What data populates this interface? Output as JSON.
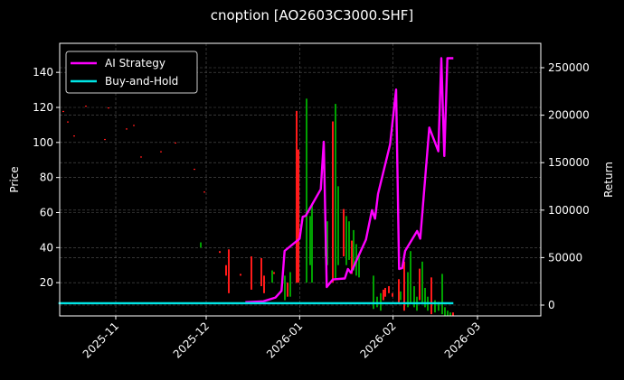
{
  "title": "cnoption [AO2603C3000.SHF]",
  "chart_data": {
    "type": "line",
    "title": "cnoption [AO2603C3000.SHF]",
    "xlabel": "",
    "ylabel_left": "Price",
    "ylabel_right": "Return",
    "x_ticks": [
      "2025-11",
      "2025-12",
      "2026-01",
      "2026-02",
      "2026-03"
    ],
    "y_left_ticks": [
      20,
      40,
      60,
      80,
      100,
      120,
      140
    ],
    "y_right_ticks": [
      0,
      50000,
      100000,
      150000,
      200000,
      250000
    ],
    "y_left_range": [
      1,
      155
    ],
    "y_right_range": [
      -11000,
      275000
    ],
    "x_range": [
      "2025-10-13",
      "2026-03-24"
    ],
    "grid": true,
    "legend_position": "upper left",
    "legend": [
      {
        "label": "AI Strategy",
        "color": "#ff00ff"
      },
      {
        "label": "Buy-and-Hold",
        "color": "#00e5e5"
      }
    ],
    "series": [
      {
        "name": "AI Strategy",
        "axis": "right",
        "color": "#ff00ff",
        "points": [
          [
            "2025-12-14",
            3000
          ],
          [
            "2025-12-20",
            4000
          ],
          [
            "2025-12-24",
            8000
          ],
          [
            "2025-12-26",
            15000
          ],
          [
            "2025-12-27",
            57000
          ],
          [
            "2026-01-01",
            70000
          ],
          [
            "2026-01-02",
            93000
          ],
          [
            "2026-01-03",
            94000
          ],
          [
            "2026-01-08",
            122000
          ],
          [
            "2026-01-09",
            172000
          ],
          [
            "2026-01-10",
            19000
          ],
          [
            "2026-01-12",
            27000
          ],
          [
            "2026-01-16",
            28000
          ],
          [
            "2026-01-17",
            38000
          ],
          [
            "2026-01-18",
            34000
          ],
          [
            "2026-01-23",
            69000
          ],
          [
            "2026-01-25",
            100000
          ],
          [
            "2026-01-26",
            91000
          ],
          [
            "2026-01-27",
            117000
          ],
          [
            "2026-01-31",
            169000
          ],
          [
            "2026-02-02",
            227000
          ],
          [
            "2026-02-03",
            38000
          ],
          [
            "2026-02-04",
            39000
          ],
          [
            "2026-02-05",
            57000
          ],
          [
            "2026-02-09",
            78000
          ],
          [
            "2026-02-10",
            70000
          ],
          [
            "2026-02-13",
            187000
          ],
          [
            "2026-02-16",
            162000
          ],
          [
            "2026-02-17",
            260000
          ],
          [
            "2026-02-18",
            157000
          ],
          [
            "2026-02-19",
            260000
          ],
          [
            "2026-02-21",
            260000
          ]
        ]
      },
      {
        "name": "Buy-and-Hold",
        "axis": "right",
        "color": "#00e5e5",
        "points": [
          [
            "2025-10-13",
            2000
          ],
          [
            "2026-02-21",
            2000
          ]
        ]
      },
      {
        "name": "Price candles",
        "axis": "left",
        "type": "candlestick",
        "up_color": "#00a000",
        "down_color": "#ff1a1a",
        "candles": [
          {
            "x": 299,
            "low": 14,
            "high": 40,
            "bodyLow": 18,
            "bodyHigh": 40,
            "up": false
          },
          {
            "x": 251,
            "low": 24,
            "high": 38,
            "bodyLow": 28,
            "bodyHigh": 34,
            "up": false
          },
          {
            "x": 254,
            "low": 14,
            "high": 40,
            "bodyLow": 14,
            "bodyHigh": 40,
            "up": false
          },
          {
            "x": 249,
            "low": 42,
            "high": 40,
            "bodyLow": 40,
            "bodyHigh": 43,
            "up": true
          }
        ]
      }
    ]
  },
  "legend": {
    "items": [
      {
        "label": "AI Strategy",
        "color": "#ff00ff"
      },
      {
        "label": "Buy-and-Hold",
        "color": "#00e5e5"
      }
    ]
  },
  "axes": {
    "left_label": "Price",
    "right_label": "Return",
    "x_ticks": [
      "2025-11",
      "2025-12",
      "2026-01",
      "2026-02",
      "2026-03"
    ],
    "y_left_ticks": [
      "20",
      "40",
      "60",
      "80",
      "100",
      "120",
      "140"
    ],
    "y_right_ticks": [
      "0",
      "50000",
      "100000",
      "150000",
      "200000",
      "250000"
    ]
  }
}
